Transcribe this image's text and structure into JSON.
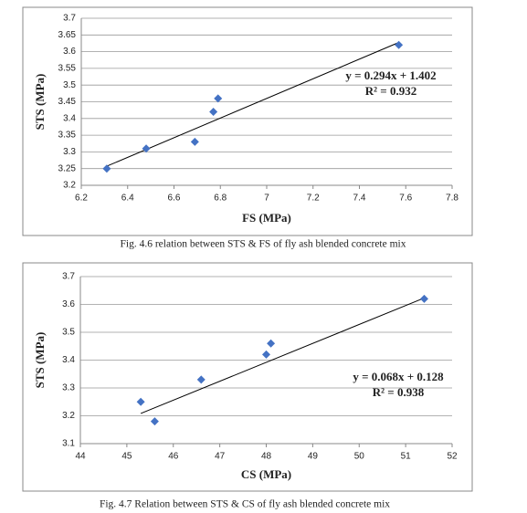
{
  "chart_data": [
    {
      "type": "scatter",
      "x_label": "FS  (MPa)",
      "y_label": "STS  (MPa)",
      "x": [
        6.31,
        6.48,
        6.69,
        6.77,
        6.79,
        7.57
      ],
      "values": [
        3.25,
        3.31,
        3.33,
        3.42,
        3.46,
        3.62
      ],
      "color": "#4472c4",
      "xlim": [
        6.2,
        7.8
      ],
      "xticks": [
        6.2,
        6.4,
        6.6,
        6.8,
        7,
        7.2,
        7.4,
        7.6,
        7.8
      ],
      "ylim": [
        3.2,
        3.7
      ],
      "yticks": [
        3.2,
        3.25,
        3.3,
        3.35,
        3.4,
        3.45,
        3.5,
        3.55,
        3.6,
        3.65,
        3.7
      ],
      "grid": true,
      "trendline": {
        "slope": 0.294,
        "intercept": 1.402,
        "equation": "y = 0.294x + 1.402",
        "r2": "R² = 0.932"
      },
      "caption": "Fig. 4.6 relation between STS & FS of fly ash blended concrete mix"
    },
    {
      "type": "scatter",
      "x_label": "CS  (MPa)",
      "y_label": "STS  (MPa)",
      "x": [
        45.3,
        45.6,
        46.6,
        48.0,
        48.1,
        51.4
      ],
      "values": [
        3.25,
        3.18,
        3.33,
        3.42,
        3.46,
        3.62
      ],
      "color": "#4472c4",
      "xlim": [
        44,
        52
      ],
      "xticks": [
        44,
        45,
        46,
        47,
        48,
        49,
        50,
        51,
        52
      ],
      "ylim": [
        3.1,
        3.7
      ],
      "yticks": [
        3.1,
        3.2,
        3.3,
        3.4,
        3.5,
        3.6,
        3.7
      ],
      "grid": true,
      "trendline": {
        "slope": 0.068,
        "intercept": 0.128,
        "equation": "y = 0.068x + 0.128",
        "r2": "R² = 0.938"
      },
      "caption": "Fig. 4.7 Relation between STS & CS of fly ash blended concrete mix"
    }
  ]
}
